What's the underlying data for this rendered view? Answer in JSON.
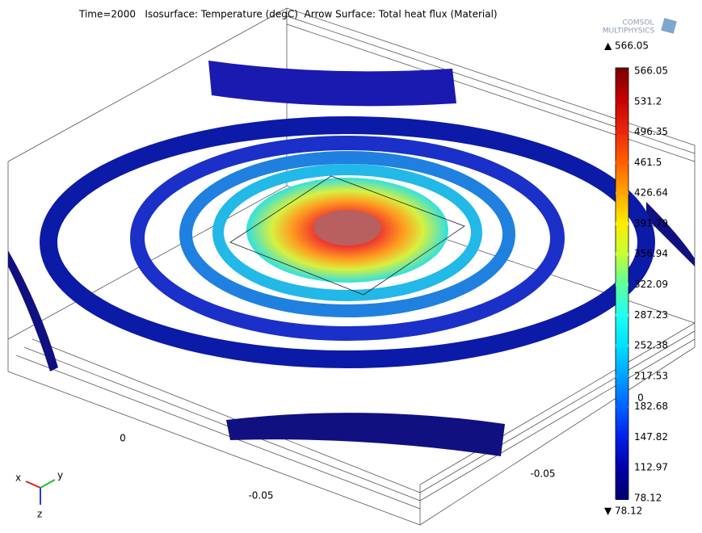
{
  "title": "Time=2000   Isosurface: Temperature (degC)  Arrow Surface: Total heat flux (Material)",
  "logo": {
    "line1": "COMSOL",
    "line2": "MULTIPHYSICS"
  },
  "colorbar": {
    "max_label": "▲ 566.05",
    "min_label": "▼ 78.12",
    "ticks": [
      {
        "value": 566.05,
        "color": "#7a0000"
      },
      {
        "value": 531.2,
        "color": "#c40000"
      },
      {
        "value": 496.35,
        "color": "#e8260e"
      },
      {
        "value": 461.5,
        "color": "#ff5c00"
      },
      {
        "value": 426.64,
        "color": "#ffa200"
      },
      {
        "value": 391.79,
        "color": "#ffea00"
      },
      {
        "value": 356.94,
        "color": "#c8ff30"
      },
      {
        "value": 322.09,
        "color": "#60ff9a"
      },
      {
        "value": 287.23,
        "color": "#20fff0"
      },
      {
        "value": 252.38,
        "color": "#00e0ff"
      },
      {
        "value": 217.53,
        "color": "#00a2ff"
      },
      {
        "value": 182.68,
        "color": "#0062ff"
      },
      {
        "value": 147.82,
        "color": "#0020e6"
      },
      {
        "value": 112.97,
        "color": "#0000a6"
      },
      {
        "value": 78.12,
        "color": "#000070"
      }
    ]
  },
  "axis_labels": [
    {
      "text": "0"
    },
    {
      "text": "-0.05"
    },
    {
      "text": "-0.05"
    },
    {
      "text": "0"
    }
  ],
  "triad": {
    "x": "x",
    "y": "y",
    "z": "z"
  }
}
